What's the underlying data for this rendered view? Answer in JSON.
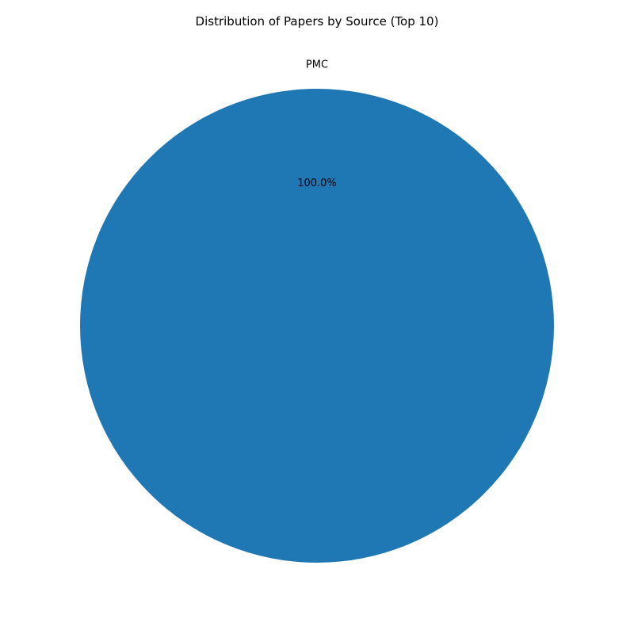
{
  "chart_data": {
    "type": "pie",
    "title": "Distribution of Papers by Source (Top 10)",
    "slices": [
      {
        "label": "PMC",
        "value": 100.0,
        "pct_label": "100.0%",
        "color": "#1f77b4"
      }
    ]
  }
}
